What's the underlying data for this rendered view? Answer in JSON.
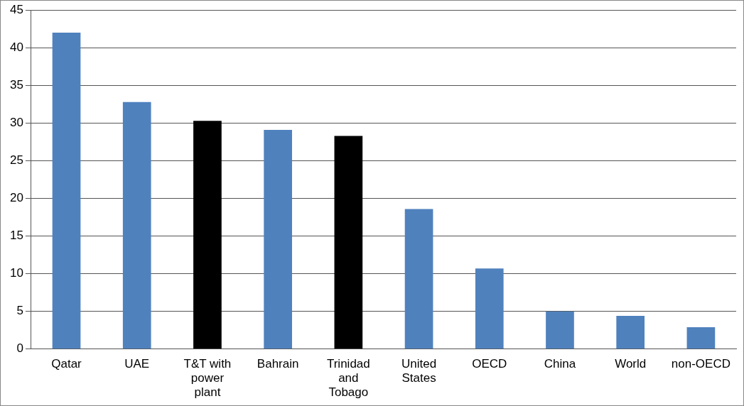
{
  "chart_data": {
    "type": "bar",
    "categories": [
      "Qatar",
      "UAE",
      "T&T with power plant",
      "Bahrain",
      "Trinidad and Tobago",
      "United States",
      "OECD",
      "China",
      "World",
      "non-OECD"
    ],
    "values": [
      42,
      32.8,
      30.3,
      29.1,
      28.3,
      18.6,
      10.7,
      5,
      4.4,
      2.9
    ],
    "colors": [
      "#4f81bd",
      "#4f81bd",
      "#000000",
      "#4f81bd",
      "#000000",
      "#4f81bd",
      "#4f81bd",
      "#4f81bd",
      "#4f81bd",
      "#4f81bd"
    ],
    "ylim": [
      0,
      45
    ],
    "yticks": [
      0,
      5,
      10,
      15,
      20,
      25,
      30,
      35,
      40,
      45
    ],
    "grid": "y",
    "legend": false
  }
}
